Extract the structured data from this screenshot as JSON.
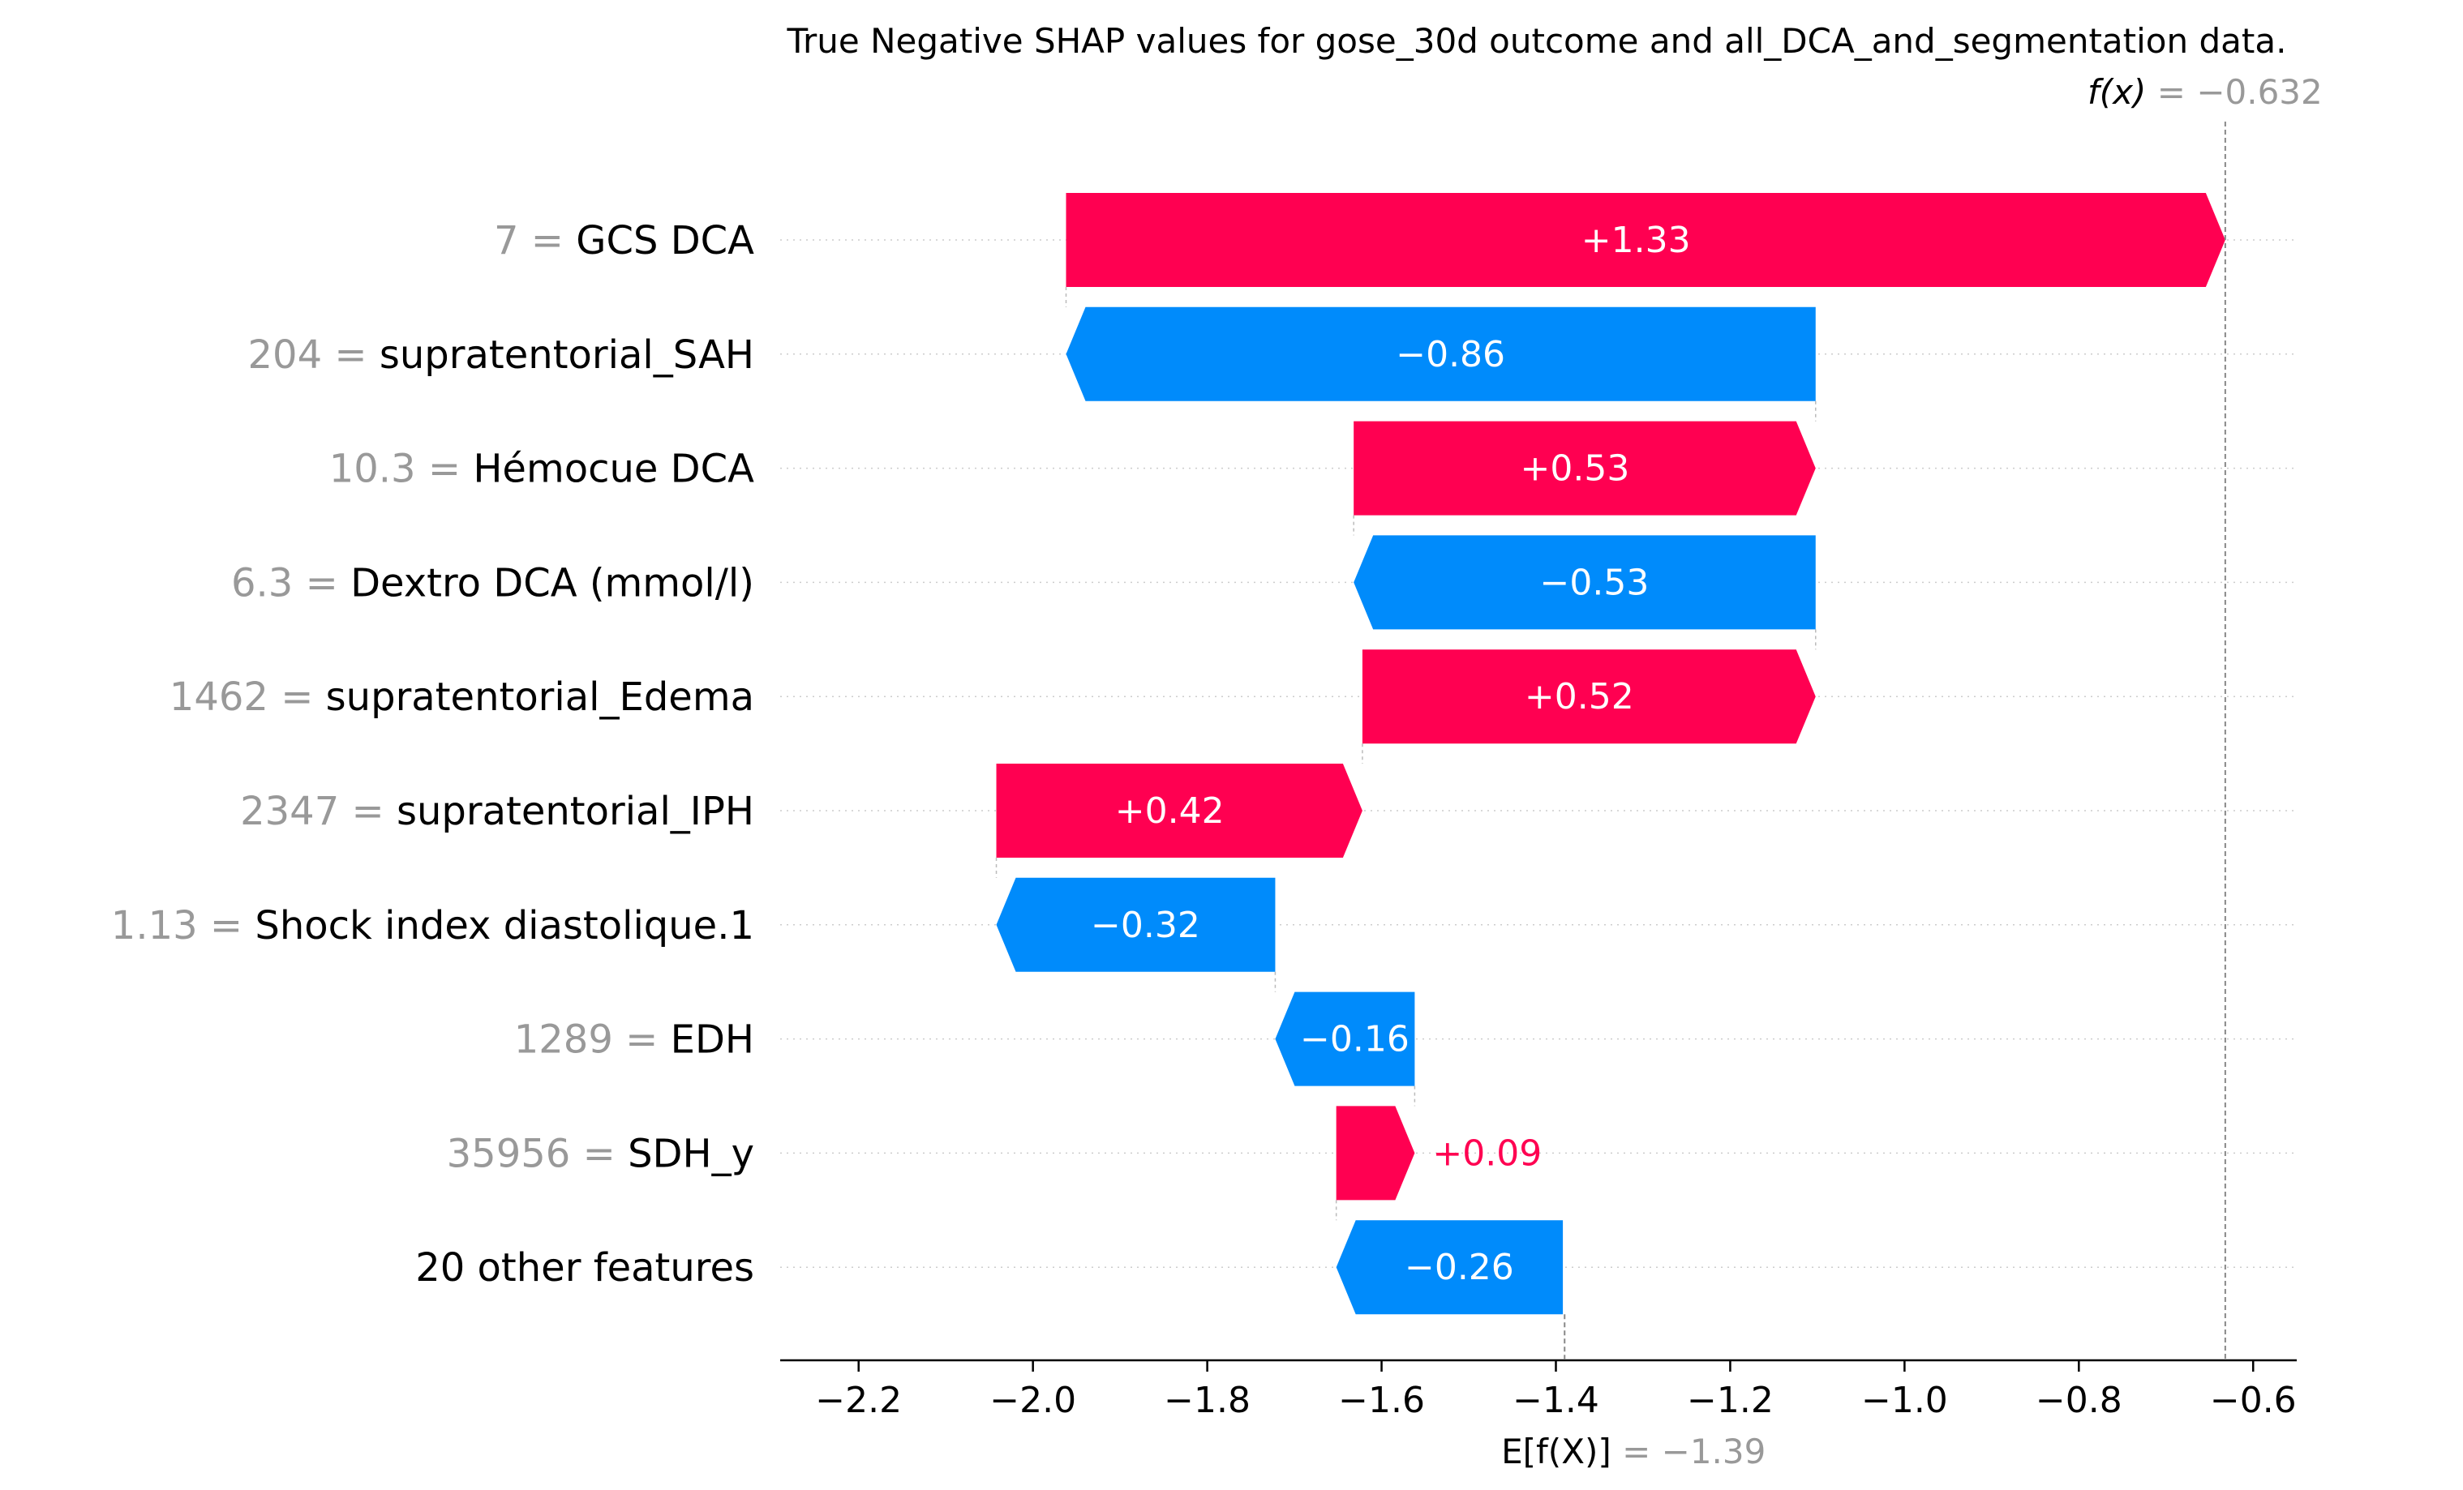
{
  "chart_data": {
    "type": "waterfall",
    "title": "True Negative SHAP values for gose_30d outcome and all_DCA_and_segmentation data.",
    "fx": {
      "label": "f(x)",
      "eq": " = ",
      "value": -0.632,
      "value_text": "−0.632"
    },
    "expected": {
      "label": "E[f(X)]",
      "eq": " = ",
      "value": -1.39,
      "value_text": "−1.39"
    },
    "xlim": [
      -2.29,
      -0.55
    ],
    "xticks": [
      -2.2,
      -2.0,
      -1.8,
      -1.6,
      -1.4,
      -1.2,
      -1.0,
      -0.8,
      -0.6
    ],
    "xtick_labels": [
      "−2.2",
      "−2.0",
      "−1.8",
      "−1.6",
      "−1.4",
      "−1.2",
      "−1.0",
      "−0.8",
      "−0.6"
    ],
    "colors": {
      "positive": "#ff0051",
      "negative": "#008bfb",
      "value_text": "#999999",
      "grid": "#cccccc"
    },
    "features": [
      {
        "value": "7",
        "name": "GCS DCA",
        "shap": 1.33,
        "label": "+1.33"
      },
      {
        "value": "204",
        "name": "supratentorial_SAH",
        "shap": -0.86,
        "label": "−0.86"
      },
      {
        "value": "10.3",
        "name": "Hémocue DCA",
        "shap": 0.53,
        "label": "+0.53"
      },
      {
        "value": "6.3",
        "name": "Dextro DCA (mmol/l)",
        "shap": -0.53,
        "label": "−0.53"
      },
      {
        "value": "1462",
        "name": "supratentorial_Edema",
        "shap": 0.52,
        "label": "+0.52"
      },
      {
        "value": "2347",
        "name": "supratentorial_IPH",
        "shap": 0.42,
        "label": "+0.42"
      },
      {
        "value": "1.13",
        "name": "Shock index diastolique.1",
        "shap": -0.32,
        "label": "−0.32"
      },
      {
        "value": "1289",
        "name": "EDH",
        "shap": -0.16,
        "label": "−0.16"
      },
      {
        "value": "35956",
        "name": "SDH_y",
        "shap": 0.09,
        "label": "+0.09"
      },
      {
        "value": "",
        "name": "20 other features",
        "shap": -0.26,
        "label": "−0.26"
      }
    ]
  }
}
